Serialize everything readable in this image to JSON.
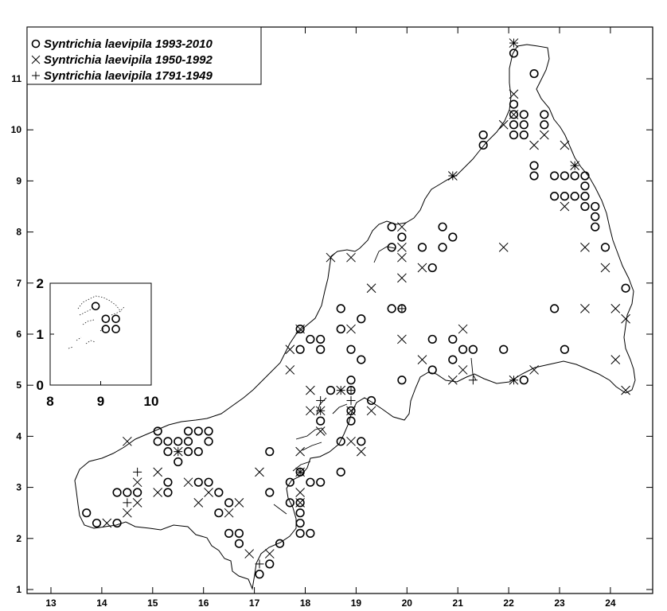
{
  "legend": [
    {
      "label": "Syntrichia laevipila 1993-2010",
      "marker": "circle"
    },
    {
      "label": "Syntrichia laevipila 1950-1992",
      "marker": "cross"
    },
    {
      "label": "Syntrichia laevipila 1791-1949",
      "marker": "plus"
    }
  ],
  "axes": {
    "x_ticks": [
      "13",
      "14",
      "15",
      "16",
      "17",
      "18",
      "19",
      "20",
      "21",
      "22",
      "23",
      "24"
    ],
    "y_ticks": [
      "1",
      "2",
      "3",
      "4",
      "5",
      "6",
      "7",
      "8",
      "9",
      "10",
      "11"
    ]
  },
  "inset": {
    "x_ticks": [
      "8",
      "9",
      "10"
    ],
    "y_ticks": [
      "0",
      "1",
      "2"
    ]
  },
  "chart_data": {
    "type": "scatter",
    "xlim": [
      12.5,
      24.9
    ],
    "ylim": [
      0.9,
      11.9
    ],
    "series": [
      {
        "name": "Syntrichia laevipila 1993-2010",
        "marker": "circle",
        "points": [
          [
            22.1,
            11.5
          ],
          [
            22.5,
            11.1
          ],
          [
            22.1,
            10.5
          ],
          [
            22.1,
            10.3
          ],
          [
            22.3,
            10.3
          ],
          [
            22.7,
            10.3
          ],
          [
            22.1,
            10.1
          ],
          [
            22.3,
            10.1
          ],
          [
            22.7,
            10.1
          ],
          [
            22.1,
            9.9
          ],
          [
            22.3,
            9.9
          ],
          [
            21.5,
            9.9
          ],
          [
            21.5,
            9.7
          ],
          [
            22.5,
            9.3
          ],
          [
            22.5,
            9.1
          ],
          [
            22.9,
            9.1
          ],
          [
            23.1,
            9.1
          ],
          [
            23.3,
            9.1
          ],
          [
            23.5,
            9.1
          ],
          [
            23.5,
            8.9
          ],
          [
            23.5,
            8.7
          ],
          [
            23.5,
            8.5
          ],
          [
            22.9,
            8.7
          ],
          [
            23.1,
            8.7
          ],
          [
            23.3,
            8.7
          ],
          [
            23.7,
            8.5
          ],
          [
            23.7,
            8.3
          ],
          [
            23.7,
            8.1
          ],
          [
            23.9,
            7.7
          ],
          [
            24.3,
            6.9
          ],
          [
            22.9,
            6.5
          ],
          [
            23.1,
            5.7
          ],
          [
            19.7,
            8.1
          ],
          [
            19.9,
            7.9
          ],
          [
            19.7,
            7.7
          ],
          [
            20.3,
            7.7
          ],
          [
            20.7,
            8.1
          ],
          [
            20.7,
            7.7
          ],
          [
            20.9,
            7.9
          ],
          [
            20.5,
            7.3
          ],
          [
            19.7,
            6.5
          ],
          [
            19.9,
            6.5
          ],
          [
            20.5,
            5.9
          ],
          [
            20.9,
            5.9
          ],
          [
            21.1,
            5.7
          ],
          [
            21.3,
            5.7
          ],
          [
            20.9,
            5.5
          ],
          [
            21.9,
            5.7
          ],
          [
            20.5,
            5.3
          ],
          [
            19.9,
            5.1
          ],
          [
            22.3,
            5.1
          ],
          [
            18.7,
            6.5
          ],
          [
            19.1,
            6.3
          ],
          [
            18.7,
            6.1
          ],
          [
            18.9,
            5.7
          ],
          [
            19.1,
            5.5
          ],
          [
            17.9,
            6.1
          ],
          [
            18.1,
            5.9
          ],
          [
            18.3,
            5.9
          ],
          [
            17.9,
            5.7
          ],
          [
            18.3,
            5.7
          ],
          [
            18.9,
            5.1
          ],
          [
            18.9,
            4.9
          ],
          [
            18.5,
            4.9
          ],
          [
            18.9,
            4.5
          ],
          [
            19.3,
            4.7
          ],
          [
            18.3,
            4.3
          ],
          [
            18.9,
            4.3
          ],
          [
            18.7,
            3.9
          ],
          [
            19.1,
            3.9
          ],
          [
            18.7,
            3.3
          ],
          [
            17.3,
            3.7
          ],
          [
            17.7,
            3.1
          ],
          [
            17.9,
            3.3
          ],
          [
            18.1,
            3.1
          ],
          [
            18.3,
            3.1
          ],
          [
            17.3,
            2.9
          ],
          [
            17.7,
            2.7
          ],
          [
            17.9,
            2.7
          ],
          [
            17.9,
            2.5
          ],
          [
            17.9,
            2.3
          ],
          [
            17.9,
            2.1
          ],
          [
            18.1,
            2.1
          ],
          [
            17.5,
            1.9
          ],
          [
            17.3,
            1.5
          ],
          [
            17.1,
            1.3
          ],
          [
            15.1,
            4.1
          ],
          [
            15.1,
            3.9
          ],
          [
            15.3,
            3.9
          ],
          [
            15.5,
            3.9
          ],
          [
            15.7,
            3.9
          ],
          [
            15.9,
            4.1
          ],
          [
            15.7,
            4.1
          ],
          [
            16.1,
            4.1
          ],
          [
            16.1,
            3.9
          ],
          [
            15.3,
            3.7
          ],
          [
            15.7,
            3.7
          ],
          [
            15.9,
            3.7
          ],
          [
            15.5,
            3.5
          ],
          [
            15.3,
            3.1
          ],
          [
            15.9,
            3.1
          ],
          [
            16.1,
            3.1
          ],
          [
            15.3,
            2.9
          ],
          [
            16.3,
            2.9
          ],
          [
            16.5,
            2.7
          ],
          [
            16.3,
            2.5
          ],
          [
            16.5,
            2.1
          ],
          [
            16.7,
            2.1
          ],
          [
            16.7,
            1.9
          ],
          [
            14.3,
            2.9
          ],
          [
            14.5,
            2.9
          ],
          [
            14.7,
            2.9
          ],
          [
            13.7,
            2.5
          ],
          [
            13.9,
            2.3
          ],
          [
            14.3,
            2.3
          ]
        ]
      },
      {
        "name": "Syntrichia laevipila 1950-1992",
        "marker": "cross",
        "points": [
          [
            22.1,
            11.7
          ],
          [
            22.1,
            10.7
          ],
          [
            22.1,
            10.3
          ],
          [
            21.9,
            10.1
          ],
          [
            22.7,
            9.9
          ],
          [
            22.5,
            9.7
          ],
          [
            23.1,
            9.7
          ],
          [
            23.3,
            9.3
          ],
          [
            23.1,
            8.5
          ],
          [
            23.5,
            7.7
          ],
          [
            23.9,
            7.3
          ],
          [
            23.5,
            6.5
          ],
          [
            24.1,
            6.5
          ],
          [
            24.3,
            6.3
          ],
          [
            24.1,
            5.5
          ],
          [
            24.3,
            4.9
          ],
          [
            22.5,
            5.3
          ],
          [
            22.1,
            5.1
          ],
          [
            21.9,
            7.7
          ],
          [
            21.1,
            5.3
          ],
          [
            20.9,
            5.1
          ],
          [
            20.9,
            9.1
          ],
          [
            19.9,
            8.1
          ],
          [
            19.9,
            7.7
          ],
          [
            19.9,
            7.5
          ],
          [
            20.3,
            7.3
          ],
          [
            19.9,
            7.1
          ],
          [
            19.3,
            6.9
          ],
          [
            18.9,
            7.5
          ],
          [
            18.5,
            7.5
          ],
          [
            19.9,
            5.9
          ],
          [
            20.3,
            5.5
          ],
          [
            21.1,
            6.1
          ],
          [
            18.9,
            6.1
          ],
          [
            17.9,
            6.1
          ],
          [
            17.7,
            5.7
          ],
          [
            17.7,
            5.3
          ],
          [
            18.1,
            4.9
          ],
          [
            18.1,
            4.5
          ],
          [
            18.3,
            4.5
          ],
          [
            18.3,
            4.1
          ],
          [
            18.9,
            4.5
          ],
          [
            19.3,
            4.5
          ],
          [
            18.9,
            3.9
          ],
          [
            19.1,
            3.7
          ],
          [
            18.7,
            4.9
          ],
          [
            17.9,
            3.7
          ],
          [
            17.9,
            3.3
          ],
          [
            17.9,
            2.9
          ],
          [
            17.9,
            2.7
          ],
          [
            17.1,
            3.3
          ],
          [
            16.9,
            1.7
          ],
          [
            17.3,
            1.7
          ],
          [
            16.7,
            2.7
          ],
          [
            16.5,
            2.5
          ],
          [
            16.1,
            2.9
          ],
          [
            15.9,
            2.7
          ],
          [
            15.7,
            3.1
          ],
          [
            15.5,
            3.7
          ],
          [
            15.1,
            3.3
          ],
          [
            14.5,
            3.9
          ],
          [
            14.7,
            3.1
          ],
          [
            14.7,
            2.7
          ],
          [
            14.5,
            2.5
          ],
          [
            14.1,
            2.3
          ],
          [
            15.1,
            2.9
          ]
        ]
      },
      {
        "name": "Syntrichia laevipila 1791-1949",
        "marker": "plus",
        "points": [
          [
            22.1,
            11.7
          ],
          [
            23.3,
            9.3
          ],
          [
            21.3,
            5.1
          ],
          [
            22.1,
            5.1
          ],
          [
            20.9,
            9.1
          ],
          [
            19.9,
            6.5
          ],
          [
            18.7,
            4.9
          ],
          [
            18.9,
            4.9
          ],
          [
            18.3,
            4.7
          ],
          [
            18.3,
            4.5
          ],
          [
            18.9,
            4.7
          ],
          [
            17.9,
            3.3
          ],
          [
            17.1,
            1.5
          ],
          [
            15.5,
            3.7
          ],
          [
            14.7,
            3.3
          ],
          [
            14.5,
            2.7
          ]
        ]
      }
    ]
  },
  "inset_data": {
    "xlim": [
      8,
      10
    ],
    "ylim": [
      0,
      2
    ],
    "circles": [
      [
        8.9,
        1.55
      ],
      [
        9.1,
        1.3
      ],
      [
        9.1,
        1.1
      ],
      [
        9.3,
        1.1
      ],
      [
        9.3,
        1.3
      ]
    ]
  }
}
